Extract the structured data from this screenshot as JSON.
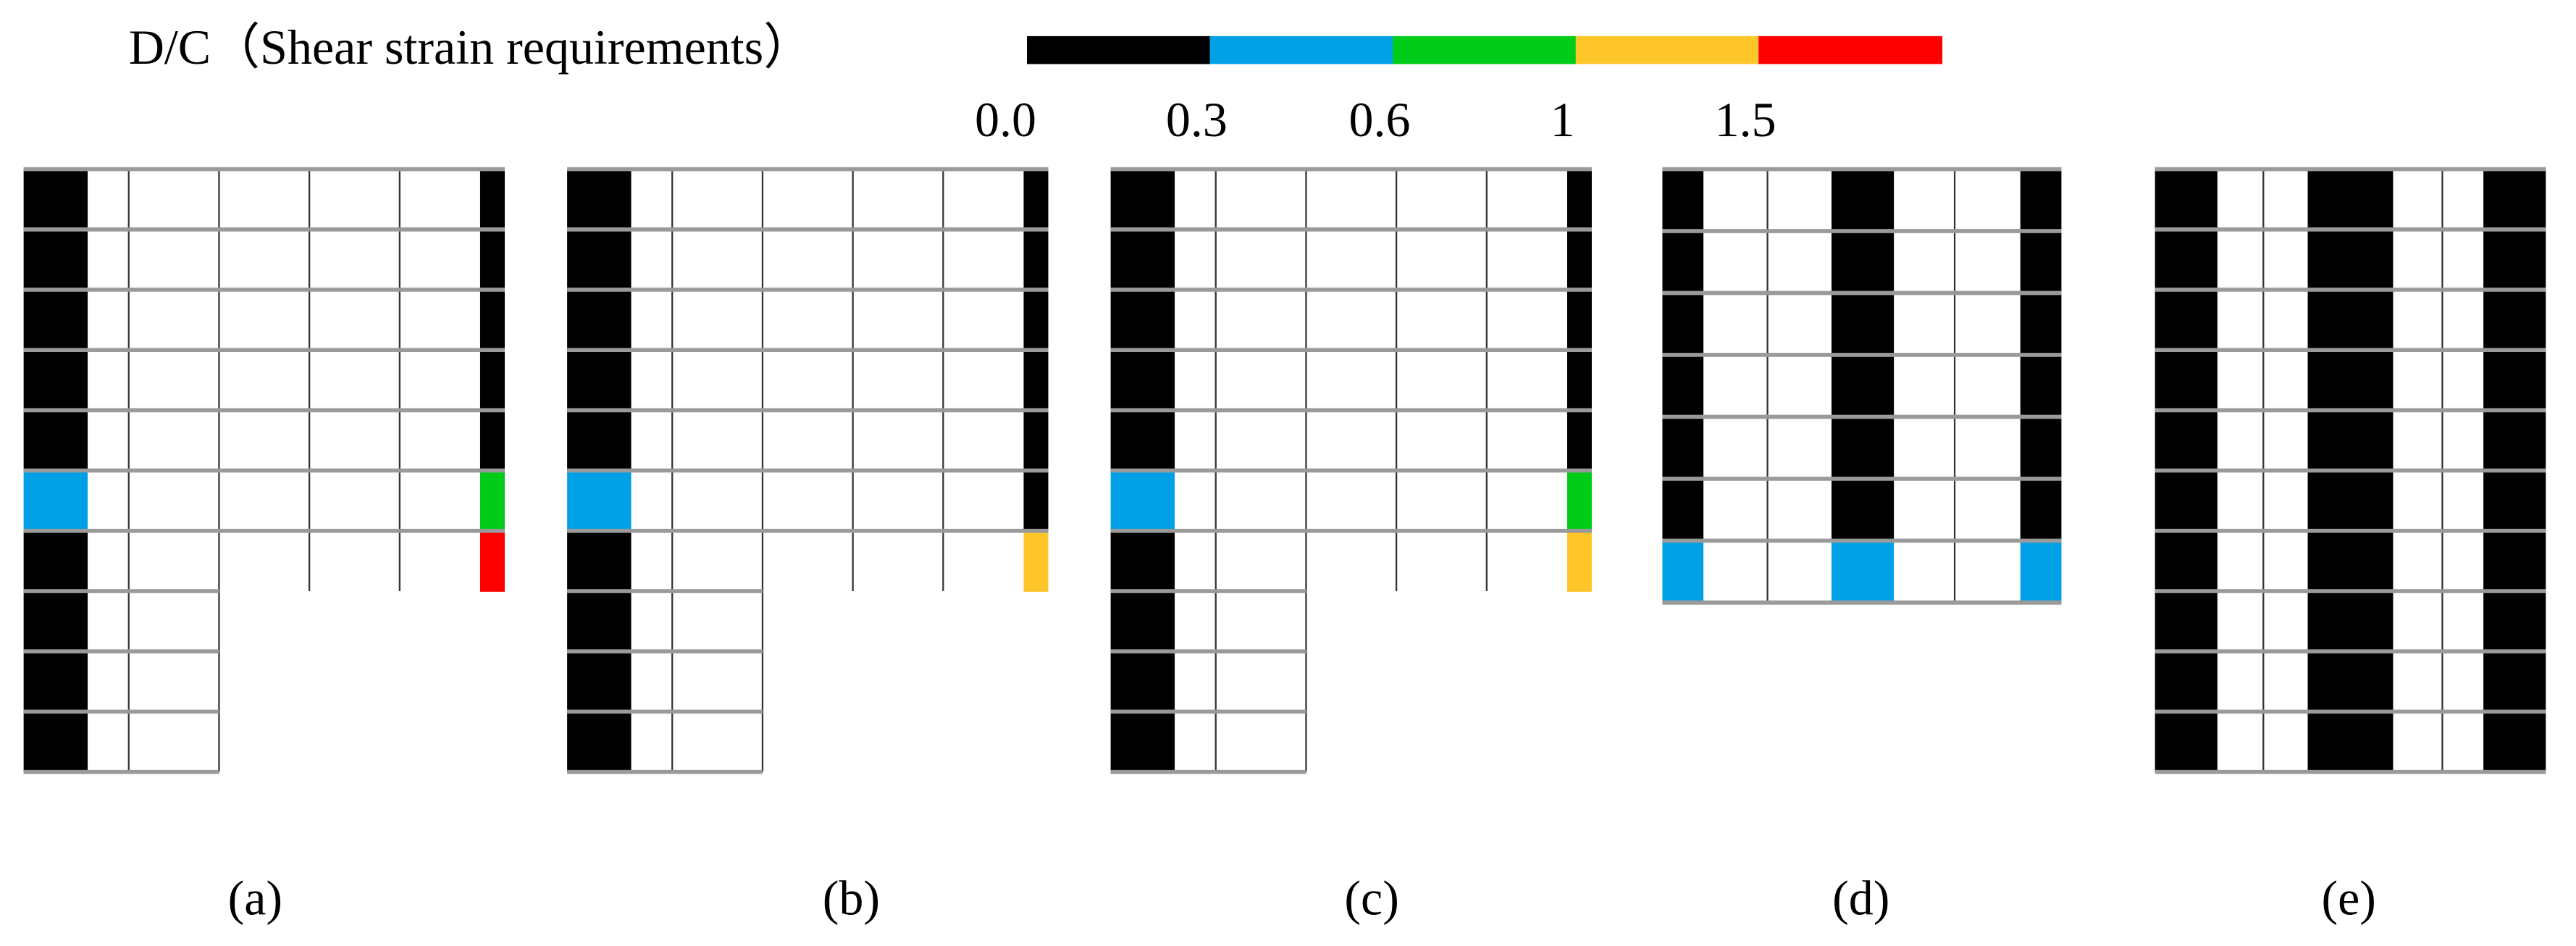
{
  "legend": {
    "title": "D/C（Shear strain requirements）",
    "labels": [
      "0.0",
      "0.3",
      "0.6",
      "1",
      "1.5"
    ],
    "colors": [
      "#000000",
      "#00a0e6",
      "#00cc1a",
      "#ffc62a",
      "#ff0000"
    ]
  },
  "panels": [
    {
      "label": "(a)"
    },
    {
      "label": "(b)"
    },
    {
      "label": "(c)"
    },
    {
      "label": "(d)"
    },
    {
      "label": "(e)"
    }
  ]
}
